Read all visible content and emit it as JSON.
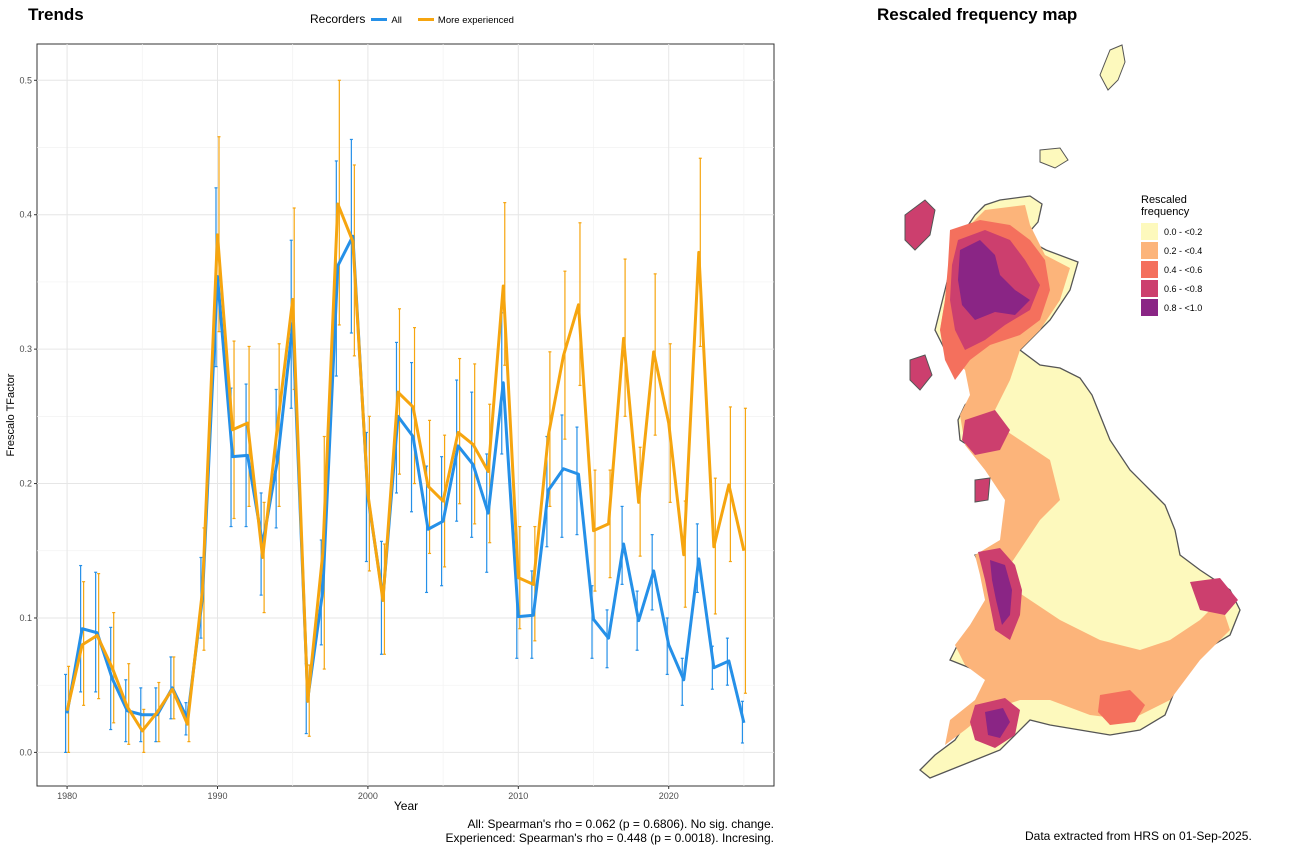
{
  "titles": {
    "trends": "Trends",
    "map": "Rescaled frequency map"
  },
  "legend": {
    "title": "Recorders",
    "items": [
      {
        "label": "All",
        "color": "#2590e8"
      },
      {
        "label": "More experienced",
        "color": "#f6a50f"
      }
    ]
  },
  "chart_data": {
    "type": "line",
    "xlabel": "Year",
    "ylabel": "Frescalo TFactor",
    "xlim": [
      1978,
      2027
    ],
    "ylim": [
      -0.025,
      0.527
    ],
    "x_ticks": [
      1980,
      1990,
      2000,
      2010,
      2020
    ],
    "y_ticks": [
      0.0,
      0.1,
      0.2,
      0.3,
      0.4,
      0.5
    ],
    "y_tick_labels": [
      "0.0",
      "0.1",
      "0.2",
      "0.3",
      "0.4",
      "0.5"
    ],
    "grid": true,
    "x": [
      1980,
      1981,
      1982,
      1983,
      1984,
      1985,
      1986,
      1987,
      1988,
      1989,
      1990,
      1991,
      1992,
      1993,
      1994,
      1995,
      1996,
      1997,
      1998,
      1999,
      2000,
      2001,
      2002,
      2003,
      2004,
      2005,
      2006,
      2007,
      2008,
      2009,
      2010,
      2011,
      2012,
      2013,
      2014,
      2015,
      2016,
      2017,
      2018,
      2019,
      2020,
      2021,
      2022,
      2023,
      2024,
      2025
    ],
    "series": [
      {
        "name": "All",
        "color": "#2590e8",
        "values": [
          0.029,
          0.092,
          0.089,
          0.055,
          0.031,
          0.028,
          0.028,
          0.048,
          0.025,
          0.115,
          0.354,
          0.22,
          0.221,
          0.155,
          0.218,
          0.319,
          0.04,
          0.12,
          0.362,
          0.384,
          0.19,
          0.115,
          0.25,
          0.235,
          0.166,
          0.172,
          0.228,
          0.214,
          0.178,
          0.275,
          0.101,
          0.102,
          0.195,
          0.211,
          0.207,
          0.099,
          0.085,
          0.155,
          0.098,
          0.135,
          0.08,
          0.054,
          0.144,
          0.063,
          0.068,
          0.022
        ],
        "low": [
          0.0,
          0.045,
          0.045,
          0.017,
          0.008,
          0.008,
          0.008,
          0.025,
          0.013,
          0.085,
          0.287,
          0.168,
          0.168,
          0.117,
          0.167,
          0.256,
          0.014,
          0.08,
          0.28,
          0.312,
          0.142,
          0.073,
          0.193,
          0.179,
          0.119,
          0.124,
          0.172,
          0.16,
          0.134,
          0.222,
          0.07,
          0.07,
          0.153,
          0.16,
          0.162,
          0.07,
          0.063,
          0.125,
          0.076,
          0.106,
          0.058,
          0.035,
          0.119,
          0.047,
          0.05,
          0.007
        ],
        "high": [
          0.058,
          0.139,
          0.134,
          0.093,
          0.054,
          0.048,
          0.048,
          0.071,
          0.037,
          0.145,
          0.42,
          0.271,
          0.274,
          0.193,
          0.27,
          0.381,
          0.066,
          0.158,
          0.44,
          0.456,
          0.238,
          0.157,
          0.305,
          0.29,
          0.213,
          0.22,
          0.277,
          0.268,
          0.222,
          0.327,
          0.132,
          0.135,
          0.235,
          0.251,
          0.242,
          0.124,
          0.106,
          0.183,
          0.12,
          0.162,
          0.1,
          0.07,
          0.17,
          0.079,
          0.085,
          0.038
        ]
      },
      {
        "name": "More experienced",
        "color": "#f6a50f",
        "values": [
          0.031,
          0.08,
          0.087,
          0.063,
          0.034,
          0.016,
          0.03,
          0.047,
          0.021,
          0.12,
          0.385,
          0.24,
          0.245,
          0.145,
          0.244,
          0.337,
          0.038,
          0.148,
          0.408,
          0.38,
          0.192,
          0.113,
          0.268,
          0.257,
          0.198,
          0.187,
          0.238,
          0.229,
          0.209,
          0.347,
          0.13,
          0.125,
          0.236,
          0.295,
          0.333,
          0.165,
          0.17,
          0.308,
          0.186,
          0.298,
          0.245,
          0.147,
          0.372,
          0.153,
          0.199,
          0.15
        ],
        "low": [
          0.0,
          0.035,
          0.04,
          0.022,
          0.006,
          0.0,
          0.008,
          0.025,
          0.008,
          0.076,
          0.313,
          0.174,
          0.183,
          0.104,
          0.183,
          0.27,
          0.012,
          0.062,
          0.318,
          0.295,
          0.135,
          0.073,
          0.207,
          0.2,
          0.148,
          0.138,
          0.185,
          0.17,
          0.156,
          0.288,
          0.092,
          0.083,
          0.183,
          0.233,
          0.273,
          0.12,
          0.13,
          0.25,
          0.146,
          0.236,
          0.186,
          0.108,
          0.302,
          0.103,
          0.142,
          0.044
        ],
        "high": [
          0.064,
          0.127,
          0.133,
          0.104,
          0.066,
          0.032,
          0.052,
          0.071,
          0.034,
          0.167,
          0.458,
          0.306,
          0.302,
          0.186,
          0.304,
          0.405,
          0.065,
          0.235,
          0.5,
          0.437,
          0.25,
          0.155,
          0.33,
          0.316,
          0.247,
          0.236,
          0.293,
          0.289,
          0.259,
          0.409,
          0.168,
          0.168,
          0.298,
          0.358,
          0.394,
          0.21,
          0.21,
          0.367,
          0.227,
          0.356,
          0.304,
          0.187,
          0.442,
          0.204,
          0.257,
          0.256
        ]
      }
    ]
  },
  "stats": {
    "all": "All: Spearman's rho = 0.062 (p = 0.6806). No sig. change.",
    "experienced": "Experienced: Spearman's rho = 0.448 (p = 0.0018). Incresing."
  },
  "map": {
    "legend_title": "Rescaled\nfrequency",
    "bins": [
      {
        "label": "0.0 - <0.2",
        "color": "#fdf9bd"
      },
      {
        "label": "0.2 - <0.4",
        "color": "#fcb47a"
      },
      {
        "label": "0.4 - <0.6",
        "color": "#f4705d"
      },
      {
        "label": "0.6 - <0.8",
        "color": "#cc3f6e"
      },
      {
        "label": "0.8 - <1.0",
        "color": "#8a2585"
      }
    ],
    "source_note": "Data extracted from HRS on 01-Sep-2025."
  }
}
